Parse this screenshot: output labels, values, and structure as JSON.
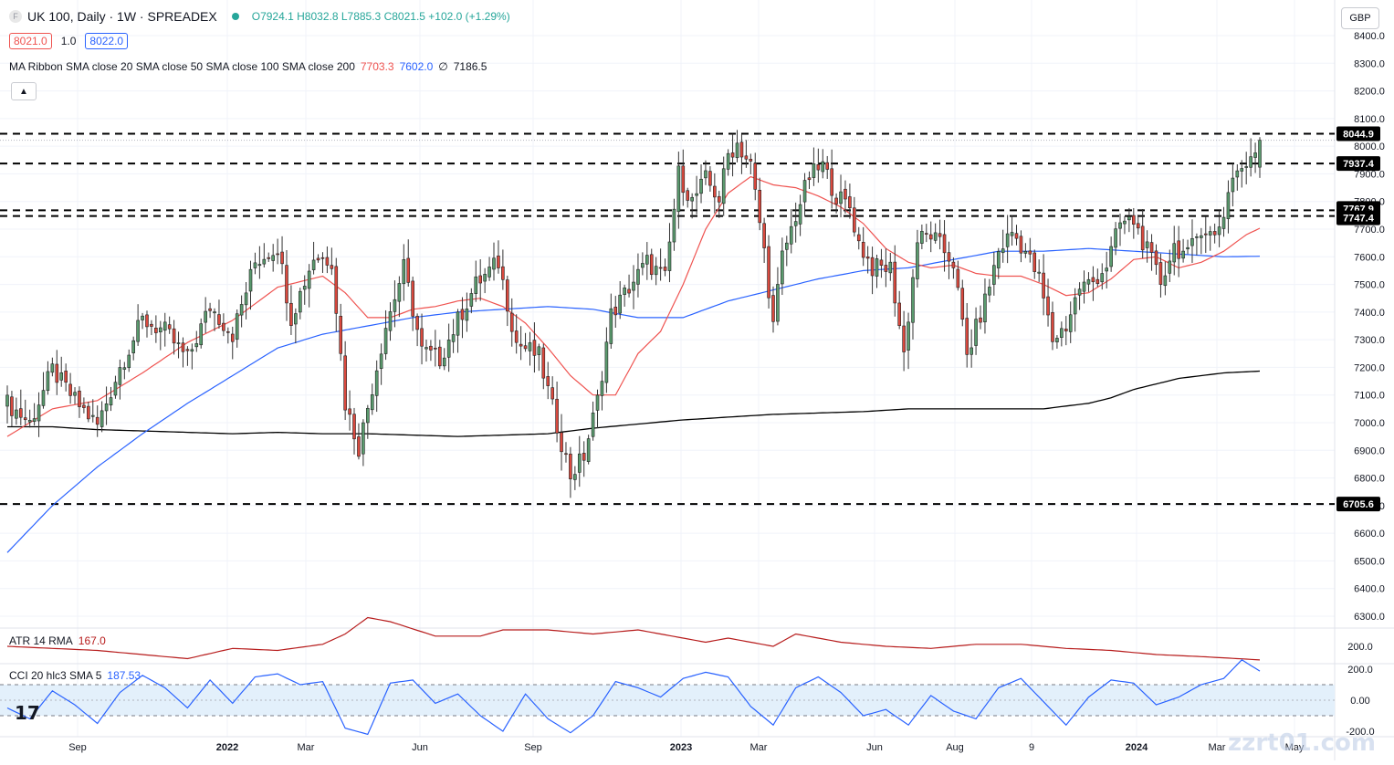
{
  "header": {
    "symbol_title": "UK 100, Daily · 1W · SPREADEX",
    "open": "O7924.1",
    "high": "H8032.8",
    "low": "L7885.3",
    "close": "C8021.5",
    "change": "+102.0 (+1.29%)",
    "bid": "8021.0",
    "spread": "1.0",
    "ask": "8022.0",
    "currency": "GBP"
  },
  "indicators": {
    "ma_ribbon_label": "MA Ribbon SMA close 20 SMA close 50 SMA close 100 SMA close 200",
    "ma_ribbon_values": [
      "7703.3",
      "7602.0",
      "∅",
      "7186.5"
    ],
    "atr_label": "ATR 14 RMA",
    "atr_value": "167.0",
    "cci_label": "CCI 20 hlc3 SMA 5",
    "cci_value": "187.53"
  },
  "colors": {
    "up": "#26a69a",
    "up_fill": "#5a9b6e",
    "down": "#ef5350",
    "down_fill": "#d9493e",
    "sma20": "#ef5350",
    "sma50": "#2962ff",
    "sma200": "#000000",
    "atr": "#b71c1c",
    "cci": "#2962ff"
  },
  "watermark": "zzrt01.com",
  "chart_data": [
    {
      "type": "candlestick",
      "title": "UK 100, Daily · 1W · SPREADEX",
      "x_labels": [
        "Sep",
        "2022",
        "Mar",
        "Jun",
        "Sep",
        "2023",
        "Mar",
        "Jun",
        "Aug",
        "9",
        "2024",
        "Mar",
        "May"
      ],
      "y_ticks": [
        6300,
        6400,
        6500,
        6600,
        6700,
        6800,
        6900,
        7000,
        7100,
        7200,
        7300,
        7400,
        7500,
        7600,
        7700,
        7800,
        7900,
        8000,
        8100,
        8200,
        8300,
        8400
      ],
      "y_tick_labels": [
        "6300.0",
        "6400.0",
        "6500.0",
        "6600.0",
        "6700.0",
        "6800.0",
        "6900.0",
        "7000.0",
        "7100.0",
        "7200.0",
        "7300.0",
        "7400.0",
        "7500.0",
        "7600.0",
        "7700.0",
        "7800.0",
        "7900.0",
        "8000.0",
        "8100.0",
        "8200.0",
        "8300.0",
        "8400.0"
      ],
      "ylim": [
        6250,
        8450
      ],
      "horizontal_levels": [
        8044.9,
        7937.4,
        7767.9,
        7747.4,
        6705.6
      ],
      "horizontal_level_labels": [
        "8044.9",
        "7937.4",
        "7767.9",
        "7747.4",
        "6705.6"
      ],
      "anchors": [
        [
          0,
          7070
        ],
        [
          5,
          7000
        ],
        [
          10,
          7190
        ],
        [
          15,
          7080
        ],
        [
          20,
          6990
        ],
        [
          25,
          7200
        ],
        [
          30,
          7370
        ],
        [
          35,
          7330
        ],
        [
          40,
          7230
        ],
        [
          45,
          7420
        ],
        [
          50,
          7320
        ],
        [
          55,
          7580
        ],
        [
          60,
          7640
        ],
        [
          63,
          7380
        ],
        [
          68,
          7600
        ],
        [
          72,
          7590
        ],
        [
          75,
          7070
        ],
        [
          78,
          6910
        ],
        [
          84,
          7350
        ],
        [
          88,
          7560
        ],
        [
          92,
          7260
        ],
        [
          96,
          7230
        ],
        [
          100,
          7370
        ],
        [
          104,
          7500
        ],
        [
          109,
          7580
        ],
        [
          113,
          7290
        ],
        [
          118,
          7240
        ],
        [
          122,
          6990
        ],
        [
          125,
          6810
        ],
        [
          128,
          6880
        ],
        [
          131,
          7080
        ],
        [
          134,
          7390
        ],
        [
          138,
          7490
        ],
        [
          142,
          7580
        ],
        [
          146,
          7520
        ],
        [
          149,
          7900
        ],
        [
          152,
          7800
        ],
        [
          155,
          7880
        ],
        [
          158,
          7810
        ],
        [
          160,
          7970
        ],
        [
          162,
          8010
        ],
        [
          165,
          7930
        ],
        [
          168,
          7620
        ],
        [
          170,
          7350
        ],
        [
          172,
          7600
        ],
        [
          175,
          7750
        ],
        [
          178,
          7890
        ],
        [
          181,
          7930
        ],
        [
          184,
          7820
        ],
        [
          187,
          7780
        ],
        [
          189,
          7650
        ],
        [
          192,
          7560
        ],
        [
          196,
          7560
        ],
        [
          199,
          7250
        ],
        [
          202,
          7660
        ],
        [
          205,
          7680
        ],
        [
          210,
          7580
        ],
        [
          213,
          7240
        ],
        [
          217,
          7440
        ],
        [
          220,
          7620
        ],
        [
          223,
          7690
        ],
        [
          226,
          7620
        ],
        [
          229,
          7520
        ],
        [
          232,
          7300
        ],
        [
          235,
          7350
        ],
        [
          238,
          7490
        ],
        [
          241,
          7510
        ],
        [
          244,
          7570
        ],
        [
          247,
          7720
        ],
        [
          250,
          7730
        ],
        [
          253,
          7620
        ],
        [
          256,
          7510
        ],
        [
          259,
          7640
        ],
        [
          262,
          7600
        ],
        [
          265,
          7710
        ],
        [
          268,
          7670
        ],
        [
          270,
          7760
        ],
        [
          272,
          7900
        ],
        [
          274,
          7920
        ],
        [
          276,
          7940
        ],
        [
          278,
          8021.5
        ]
      ],
      "sma20_anchors": [
        [
          0,
          6950
        ],
        [
          10,
          7050
        ],
        [
          20,
          7080
        ],
        [
          30,
          7180
        ],
        [
          40,
          7290
        ],
        [
          50,
          7370
        ],
        [
          60,
          7490
        ],
        [
          65,
          7510
        ],
        [
          70,
          7530
        ],
        [
          75,
          7470
        ],
        [
          80,
          7380
        ],
        [
          85,
          7380
        ],
        [
          90,
          7410
        ],
        [
          95,
          7420
        ],
        [
          100,
          7440
        ],
        [
          105,
          7450
        ],
        [
          110,
          7420
        ],
        [
          115,
          7360
        ],
        [
          120,
          7270
        ],
        [
          125,
          7170
        ],
        [
          130,
          7100
        ],
        [
          135,
          7100
        ],
        [
          140,
          7250
        ],
        [
          145,
          7330
        ],
        [
          150,
          7500
        ],
        [
          155,
          7700
        ],
        [
          160,
          7830
        ],
        [
          165,
          7890
        ],
        [
          170,
          7860
        ],
        [
          175,
          7850
        ],
        [
          180,
          7820
        ],
        [
          185,
          7780
        ],
        [
          190,
          7720
        ],
        [
          195,
          7630
        ],
        [
          200,
          7580
        ],
        [
          205,
          7560
        ],
        [
          210,
          7570
        ],
        [
          215,
          7540
        ],
        [
          220,
          7530
        ],
        [
          225,
          7530
        ],
        [
          230,
          7500
        ],
        [
          235,
          7460
        ],
        [
          240,
          7470
        ],
        [
          245,
          7520
        ],
        [
          250,
          7590
        ],
        [
          255,
          7600
        ],
        [
          260,
          7560
        ],
        [
          265,
          7580
        ],
        [
          270,
          7620
        ],
        [
          275,
          7680
        ],
        [
          278,
          7703.3
        ]
      ],
      "sma50_anchors": [
        [
          0,
          6530
        ],
        [
          10,
          6700
        ],
        [
          20,
          6840
        ],
        [
          30,
          6960
        ],
        [
          40,
          7070
        ],
        [
          50,
          7170
        ],
        [
          60,
          7270
        ],
        [
          70,
          7320
        ],
        [
          80,
          7350
        ],
        [
          90,
          7380
        ],
        [
          100,
          7400
        ],
        [
          110,
          7410
        ],
        [
          120,
          7420
        ],
        [
          130,
          7410
        ],
        [
          140,
          7380
        ],
        [
          150,
          7380
        ],
        [
          160,
          7440
        ],
        [
          170,
          7480
        ],
        [
          180,
          7520
        ],
        [
          190,
          7550
        ],
        [
          200,
          7560
        ],
        [
          210,
          7590
        ],
        [
          220,
          7620
        ],
        [
          230,
          7620
        ],
        [
          240,
          7630
        ],
        [
          250,
          7620
        ],
        [
          260,
          7610
        ],
        [
          270,
          7600
        ],
        [
          278,
          7602.0
        ]
      ],
      "sma200_anchors": [
        [
          0,
          6985
        ],
        [
          10,
          6985
        ],
        [
          20,
          6975
        ],
        [
          30,
          6970
        ],
        [
          40,
          6965
        ],
        [
          50,
          6960
        ],
        [
          60,
          6965
        ],
        [
          70,
          6960
        ],
        [
          80,
          6960
        ],
        [
          90,
          6955
        ],
        [
          100,
          6950
        ],
        [
          110,
          6955
        ],
        [
          120,
          6960
        ],
        [
          130,
          6980
        ],
        [
          140,
          6995
        ],
        [
          150,
          7010
        ],
        [
          160,
          7020
        ],
        [
          170,
          7030
        ],
        [
          180,
          7035
        ],
        [
          190,
          7040
        ],
        [
          200,
          7050
        ],
        [
          210,
          7050
        ],
        [
          220,
          7050
        ],
        [
          230,
          7050
        ],
        [
          240,
          7070
        ],
        [
          245,
          7090
        ],
        [
          250,
          7120
        ],
        [
          255,
          7140
        ],
        [
          260,
          7160
        ],
        [
          265,
          7170
        ],
        [
          270,
          7180
        ],
        [
          278,
          7186.5
        ]
      ]
    },
    {
      "type": "line",
      "title": "ATR 14 RMA",
      "y_ticks": [
        200
      ],
      "y_tick_labels": [
        "200.0"
      ],
      "ylim": [
        150,
        290
      ],
      "series": [
        {
          "name": "ATR 14 RMA",
          "anchors": [
            [
              0,
              200
            ],
            [
              20,
              190
            ],
            [
              30,
              180
            ],
            [
              40,
              170
            ],
            [
              50,
              195
            ],
            [
              60,
              190
            ],
            [
              70,
              205
            ],
            [
              75,
              230
            ],
            [
              80,
              270
            ],
            [
              85,
              260
            ],
            [
              95,
              225
            ],
            [
              105,
              225
            ],
            [
              110,
              240
            ],
            [
              120,
              240
            ],
            [
              130,
              230
            ],
            [
              140,
              240
            ],
            [
              145,
              230
            ],
            [
              155,
              210
            ],
            [
              160,
              220
            ],
            [
              170,
              200
            ],
            [
              175,
              230
            ],
            [
              185,
              210
            ],
            [
              195,
              200
            ],
            [
              205,
              195
            ],
            [
              215,
              205
            ],
            [
              225,
              205
            ],
            [
              235,
              195
            ],
            [
              245,
              190
            ],
            [
              255,
              180
            ],
            [
              265,
              175
            ],
            [
              278,
              167.0
            ]
          ]
        }
      ]
    },
    {
      "type": "line",
      "title": "CCI 20 hlc3 SMA 5",
      "y_ticks": [
        200,
        0,
        -200
      ],
      "y_tick_labels": [
        "200.0",
        "0.00",
        "-200.0"
      ],
      "ylim": [
        -250,
        280
      ],
      "band": [
        -100,
        100
      ],
      "series": [
        {
          "name": "CCI 20 hlc3 SMA 5",
          "anchors": [
            [
              0,
              -50
            ],
            [
              5,
              -120
            ],
            [
              10,
              60
            ],
            [
              15,
              -30
            ],
            [
              20,
              -150
            ],
            [
              25,
              50
            ],
            [
              30,
              160
            ],
            [
              35,
              80
            ],
            [
              40,
              -50
            ],
            [
              45,
              130
            ],
            [
              50,
              -20
            ],
            [
              55,
              150
            ],
            [
              60,
              170
            ],
            [
              65,
              100
            ],
            [
              70,
              120
            ],
            [
              75,
              -180
            ],
            [
              80,
              -220
            ],
            [
              85,
              110
            ],
            [
              90,
              130
            ],
            [
              95,
              -20
            ],
            [
              100,
              40
            ],
            [
              105,
              -100
            ],
            [
              110,
              -200
            ],
            [
              115,
              40
            ],
            [
              120,
              -120
            ],
            [
              125,
              -210
            ],
            [
              130,
              -100
            ],
            [
              135,
              120
            ],
            [
              140,
              80
            ],
            [
              145,
              20
            ],
            [
              150,
              140
            ],
            [
              155,
              180
            ],
            [
              160,
              150
            ],
            [
              165,
              -40
            ],
            [
              170,
              -160
            ],
            [
              175,
              80
            ],
            [
              180,
              150
            ],
            [
              185,
              50
            ],
            [
              190,
              -100
            ],
            [
              195,
              -60
            ],
            [
              200,
              -160
            ],
            [
              205,
              30
            ],
            [
              210,
              -70
            ],
            [
              215,
              -120
            ],
            [
              220,
              80
            ],
            [
              225,
              140
            ],
            [
              230,
              -10
            ],
            [
              235,
              -160
            ],
            [
              240,
              20
            ],
            [
              245,
              130
            ],
            [
              250,
              110
            ],
            [
              255,
              -30
            ],
            [
              260,
              20
            ],
            [
              265,
              100
            ],
            [
              270,
              140
            ],
            [
              274,
              260
            ],
            [
              278,
              187.53
            ]
          ]
        }
      ]
    }
  ]
}
